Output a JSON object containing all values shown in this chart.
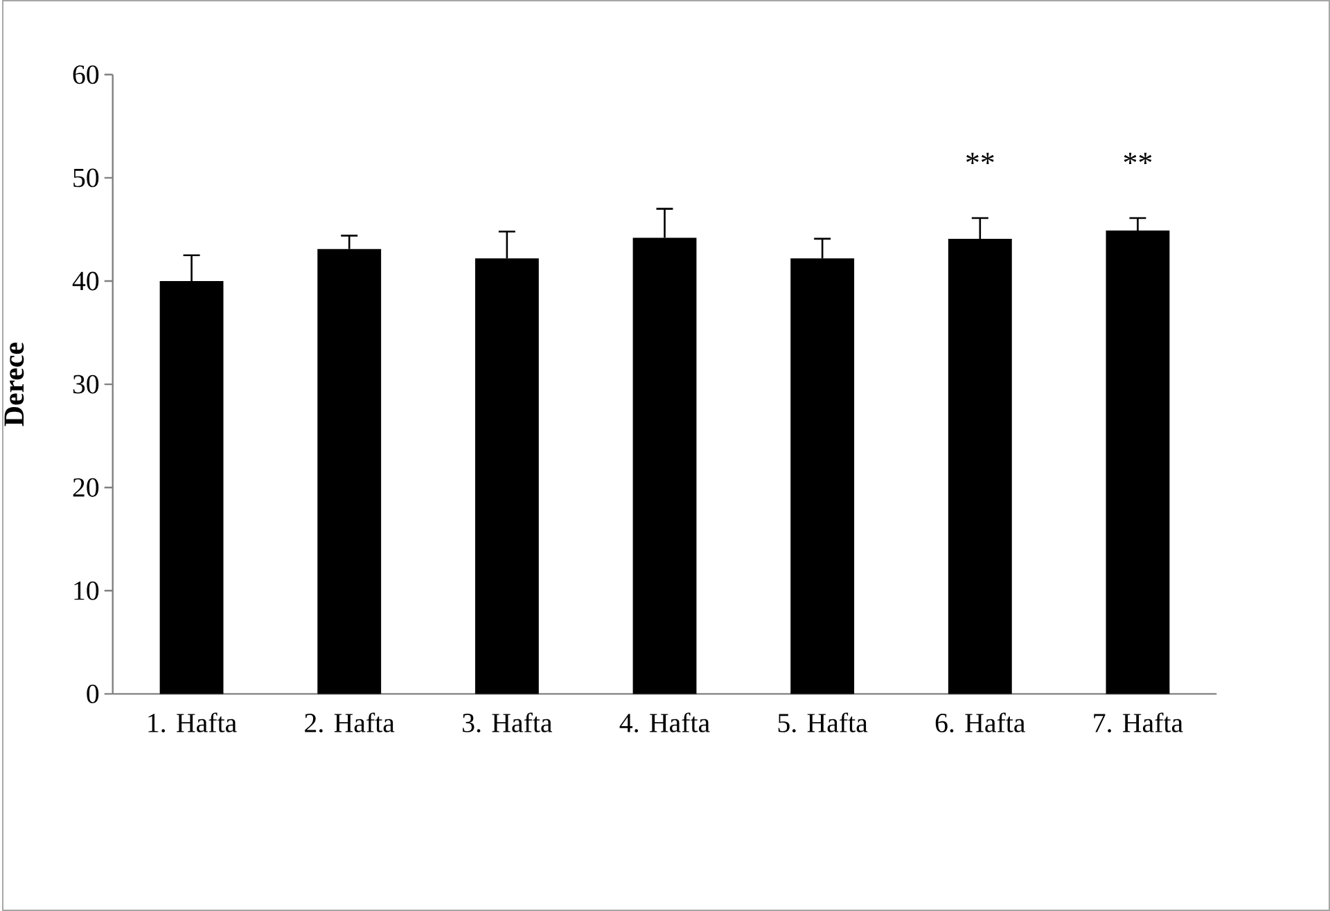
{
  "chart_data": {
    "type": "bar",
    "ylabel": "Derece",
    "categories": [
      "1. Hafta",
      "2. Hafta",
      "3. Hafta",
      "4. Hafta",
      "5. Hafta",
      "6. Hafta",
      "7. Hafta"
    ],
    "values": [
      40.0,
      43.1,
      42.2,
      44.2,
      42.2,
      44.1,
      44.9
    ],
    "errors": [
      [
        40.0,
        42.5
      ],
      [
        43.1,
        44.4
      ],
      [
        42.2,
        44.8
      ],
      [
        44.2,
        47.0
      ],
      [
        42.2,
        44.1
      ],
      [
        44.1,
        46.1
      ],
      [
        44.9,
        46.1
      ]
    ],
    "color": "#000000",
    "ylim": [
      0,
      60
    ],
    "yticks": [
      0,
      10,
      20,
      30,
      40,
      50,
      60
    ],
    "annotations": [
      "**",
      "**"
    ]
  }
}
